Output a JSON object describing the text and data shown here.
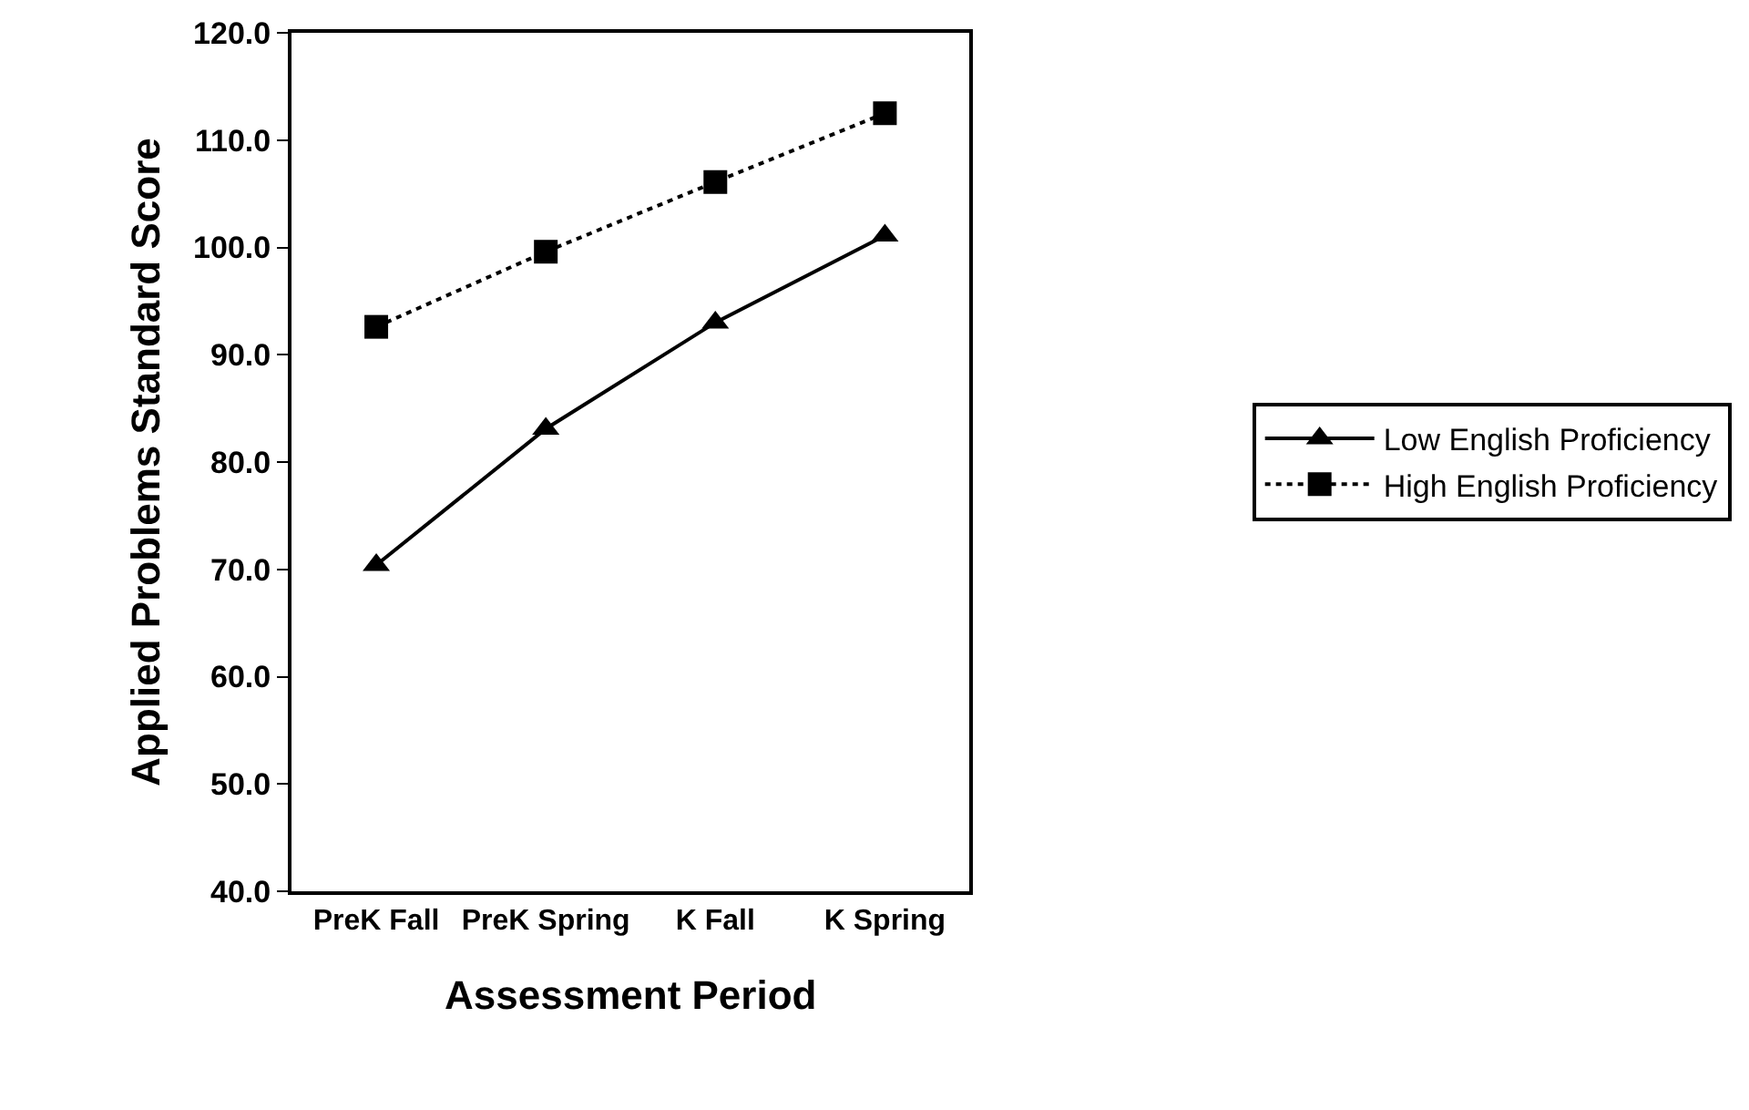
{
  "chart_data": {
    "type": "line",
    "xlabel": "Assessment Period",
    "ylabel": "Applied Problems Standard Score",
    "categories": [
      "PreK Fall",
      "PreK Spring",
      "K Fall",
      "K Spring"
    ],
    "series": [
      {
        "name": "Low English Proficiency",
        "color": "#000000",
        "marker": "triangle",
        "line_style": "solid",
        "values": [
          70.4,
          83.1,
          93.0,
          101.1
        ]
      },
      {
        "name": "High English Proficiency",
        "color": "#000000",
        "marker": "square",
        "line_style": "dotted",
        "values": [
          92.6,
          99.6,
          106.1,
          112.5
        ]
      }
    ],
    "ylim": [
      40,
      120
    ],
    "yticks": [
      {
        "value": 40,
        "label": "40.0"
      },
      {
        "value": 50,
        "label": "50.0"
      },
      {
        "value": 60,
        "label": "60.0"
      },
      {
        "value": 70,
        "label": "70.0"
      },
      {
        "value": 80,
        "label": "80.0"
      },
      {
        "value": 90,
        "label": "90.0"
      },
      {
        "value": 100,
        "label": "100.0"
      },
      {
        "value": 110,
        "label": "110.0"
      },
      {
        "value": 120,
        "label": "120.0"
      }
    ],
    "grid": false,
    "legend": "right"
  }
}
